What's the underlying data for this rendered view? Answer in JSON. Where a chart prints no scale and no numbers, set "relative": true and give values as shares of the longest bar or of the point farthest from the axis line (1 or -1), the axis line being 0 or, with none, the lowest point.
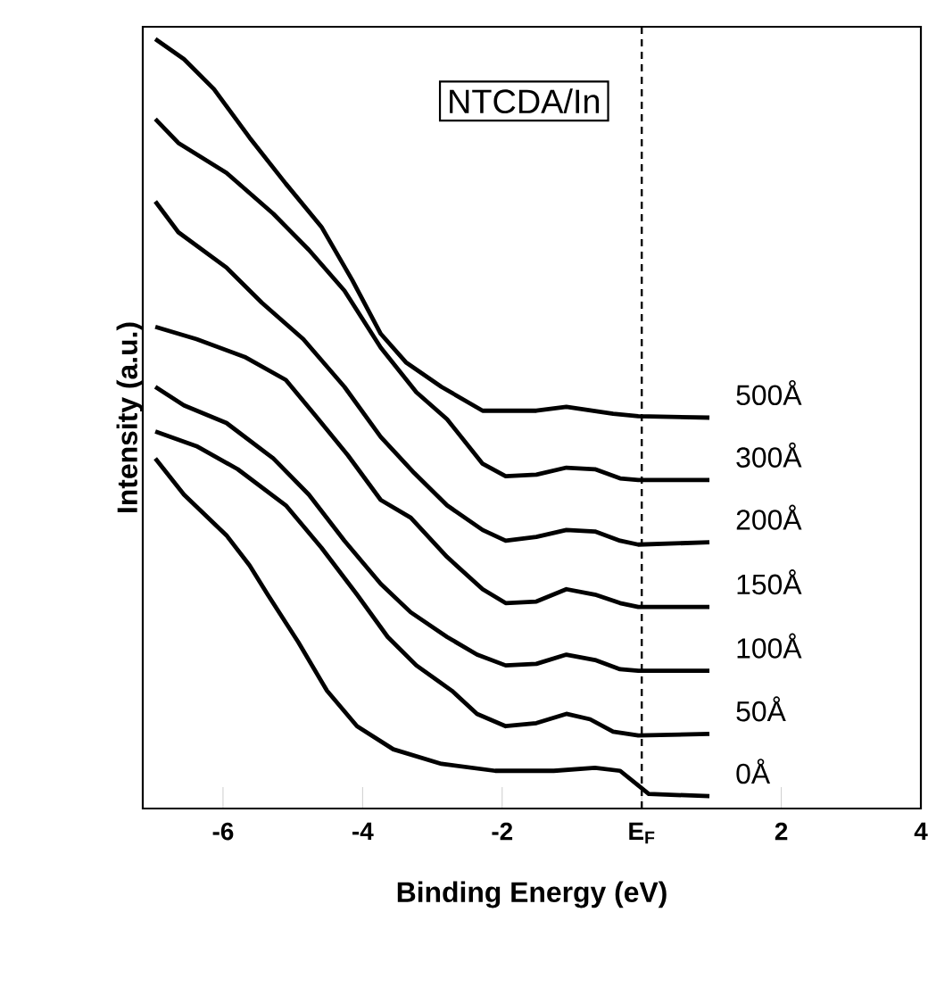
{
  "chart_data": {
    "type": "line",
    "title": "NTCDA/In",
    "xlabel": "Binding Energy (eV)",
    "ylabel": "Intensity (a.u.)",
    "relative": true,
    "xlim": [
      -7.15,
      4.0
    ],
    "xticks": [
      -6,
      -4,
      -2,
      {
        "value": 0,
        "label": "E$_{F}$"
      },
      2,
      4
    ],
    "ref_lines": [
      {
        "axis": "x",
        "value": 0,
        "line_style": "dashed",
        "color": "#000000"
      }
    ],
    "legend": false,
    "marker": "none",
    "line_style": "solid",
    "series": [
      {
        "name": "500Å",
        "color": "#000000",
        "x": [
          -6.97,
          -6.56,
          -6.13,
          -5.62,
          -5.1,
          -4.59,
          -4.15,
          -3.74,
          -3.38,
          -2.87,
          -2.28,
          -1.51,
          -1.08,
          -0.41,
          -0.05,
          0.97
        ],
        "values": [
          1.0,
          0.974,
          0.935,
          0.872,
          0.812,
          0.756,
          0.687,
          0.617,
          0.58,
          0.548,
          0.517,
          0.517,
          0.522,
          0.513,
          0.51,
          0.508
        ]
      },
      {
        "name": "300Å",
        "color": "#000000",
        "x": [
          -6.97,
          -6.64,
          -5.95,
          -5.28,
          -4.77,
          -4.26,
          -3.74,
          -3.23,
          -2.79,
          -2.28,
          -1.95,
          -1.51,
          -1.08,
          -0.67,
          -0.31,
          -0.05,
          0.97
        ],
        "values": [
          0.896,
          0.865,
          0.826,
          0.773,
          0.726,
          0.673,
          0.599,
          0.541,
          0.506,
          0.448,
          0.432,
          0.434,
          0.443,
          0.441,
          0.429,
          0.427,
          0.427
        ]
      },
      {
        "name": "200Å",
        "color": "#000000",
        "x": [
          -6.97,
          -6.64,
          -5.95,
          -5.44,
          -4.85,
          -4.26,
          -3.74,
          -3.26,
          -2.79,
          -2.28,
          -1.95,
          -1.51,
          -1.08,
          -0.67,
          -0.31,
          -0.05,
          0.97
        ],
        "values": [
          0.789,
          0.749,
          0.703,
          0.657,
          0.61,
          0.548,
          0.483,
          0.436,
          0.394,
          0.362,
          0.348,
          0.353,
          0.362,
          0.36,
          0.348,
          0.343,
          0.346
        ]
      },
      {
        "name": "150Å",
        "color": "#000000",
        "x": [
          -6.97,
          -6.38,
          -5.69,
          -5.1,
          -4.67,
          -4.21,
          -3.74,
          -3.31,
          -2.79,
          -2.28,
          -1.95,
          -1.51,
          -1.08,
          -0.67,
          -0.31,
          -0.05,
          0.97
        ],
        "values": [
          0.626,
          0.61,
          0.587,
          0.557,
          0.51,
          0.459,
          0.401,
          0.378,
          0.327,
          0.285,
          0.267,
          0.269,
          0.285,
          0.278,
          0.267,
          0.262,
          0.262
        ]
      },
      {
        "name": "100Å",
        "color": "#000000",
        "x": [
          -6.97,
          -6.56,
          -5.95,
          -5.28,
          -4.77,
          -4.26,
          -3.74,
          -3.31,
          -2.79,
          -2.36,
          -1.95,
          -1.51,
          -1.08,
          -0.67,
          -0.31,
          -0.05,
          0.97
        ],
        "values": [
          0.548,
          0.524,
          0.501,
          0.455,
          0.408,
          0.348,
          0.292,
          0.255,
          0.223,
          0.2,
          0.186,
          0.188,
          0.2,
          0.193,
          0.181,
          0.179,
          0.179
        ]
      },
      {
        "name": "50Å",
        "color": "#000000",
        "x": [
          -6.97,
          -6.38,
          -5.79,
          -5.1,
          -4.59,
          -4.08,
          -3.64,
          -3.23,
          -2.72,
          -2.36,
          -1.95,
          -1.51,
          -1.08,
          -0.74,
          -0.41,
          -0.05,
          0.97
        ],
        "values": [
          0.49,
          0.471,
          0.441,
          0.394,
          0.339,
          0.278,
          0.223,
          0.186,
          0.153,
          0.123,
          0.107,
          0.111,
          0.123,
          0.116,
          0.1,
          0.095,
          0.097
        ]
      },
      {
        "name": "0Å",
        "color": "#000000",
        "x": [
          -6.97,
          -6.56,
          -5.95,
          -5.62,
          -5.36,
          -4.92,
          -4.51,
          -4.08,
          -3.56,
          -2.87,
          -2.1,
          -1.26,
          -0.67,
          -0.31,
          -0.05,
          0.1,
          0.97
        ],
        "values": [
          0.455,
          0.408,
          0.355,
          0.316,
          0.278,
          0.216,
          0.153,
          0.107,
          0.077,
          0.058,
          0.049,
          0.049,
          0.053,
          0.049,
          0.03,
          0.019,
          0.016
        ]
      }
    ]
  }
}
